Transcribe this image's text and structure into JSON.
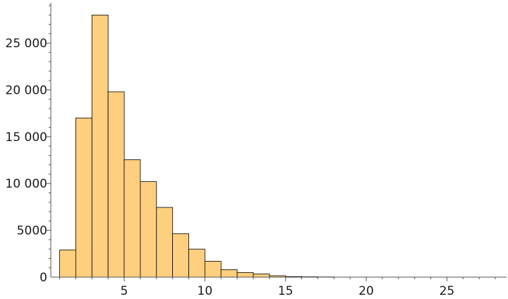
{
  "chart_data": {
    "type": "bar",
    "subtype": "histogram",
    "bin_width": 1,
    "bins": [
      {
        "x0": 1,
        "x1": 2,
        "count": 2900
      },
      {
        "x0": 2,
        "x1": 3,
        "count": 17000
      },
      {
        "x0": 3,
        "x1": 4,
        "count": 28000
      },
      {
        "x0": 4,
        "x1": 5,
        "count": 19800
      },
      {
        "x0": 5,
        "x1": 6,
        "count": 12550
      },
      {
        "x0": 6,
        "x1": 7,
        "count": 10200
      },
      {
        "x0": 7,
        "x1": 8,
        "count": 7450
      },
      {
        "x0": 8,
        "x1": 9,
        "count": 4650
      },
      {
        "x0": 9,
        "x1": 10,
        "count": 3000
      },
      {
        "x0": 10,
        "x1": 11,
        "count": 1700
      },
      {
        "x0": 11,
        "x1": 12,
        "count": 800
      },
      {
        "x0": 12,
        "x1": 13,
        "count": 500
      },
      {
        "x0": 13,
        "x1": 14,
        "count": 350
      },
      {
        "x0": 14,
        "x1": 15,
        "count": 150
      },
      {
        "x0": 15,
        "x1": 16,
        "count": 60
      },
      {
        "x0": 16,
        "x1": 17,
        "count": 40
      },
      {
        "x0": 17,
        "x1": 18,
        "count": 20
      }
    ],
    "xlim": [
      0.45,
      28.7
    ],
    "ylim": [
      0,
      29300
    ],
    "x_ticks": [
      5,
      10,
      15,
      20,
      25
    ],
    "x_tick_labels": [
      "5",
      "10",
      "15",
      "20",
      "25"
    ],
    "y_ticks": [
      0,
      5000,
      10000,
      15000,
      20000,
      25000
    ],
    "y_tick_labels": [
      "0",
      "5000",
      "10 000",
      "15 000",
      "20 000",
      "25 000"
    ],
    "title": "",
    "xlabel": "",
    "ylabel": "",
    "grid": false,
    "legend": "none",
    "colors": {
      "bar_fill": "#fecf7e",
      "bar_edge": "#000000",
      "axis": "#555555",
      "text": "#1a1a1a"
    }
  }
}
